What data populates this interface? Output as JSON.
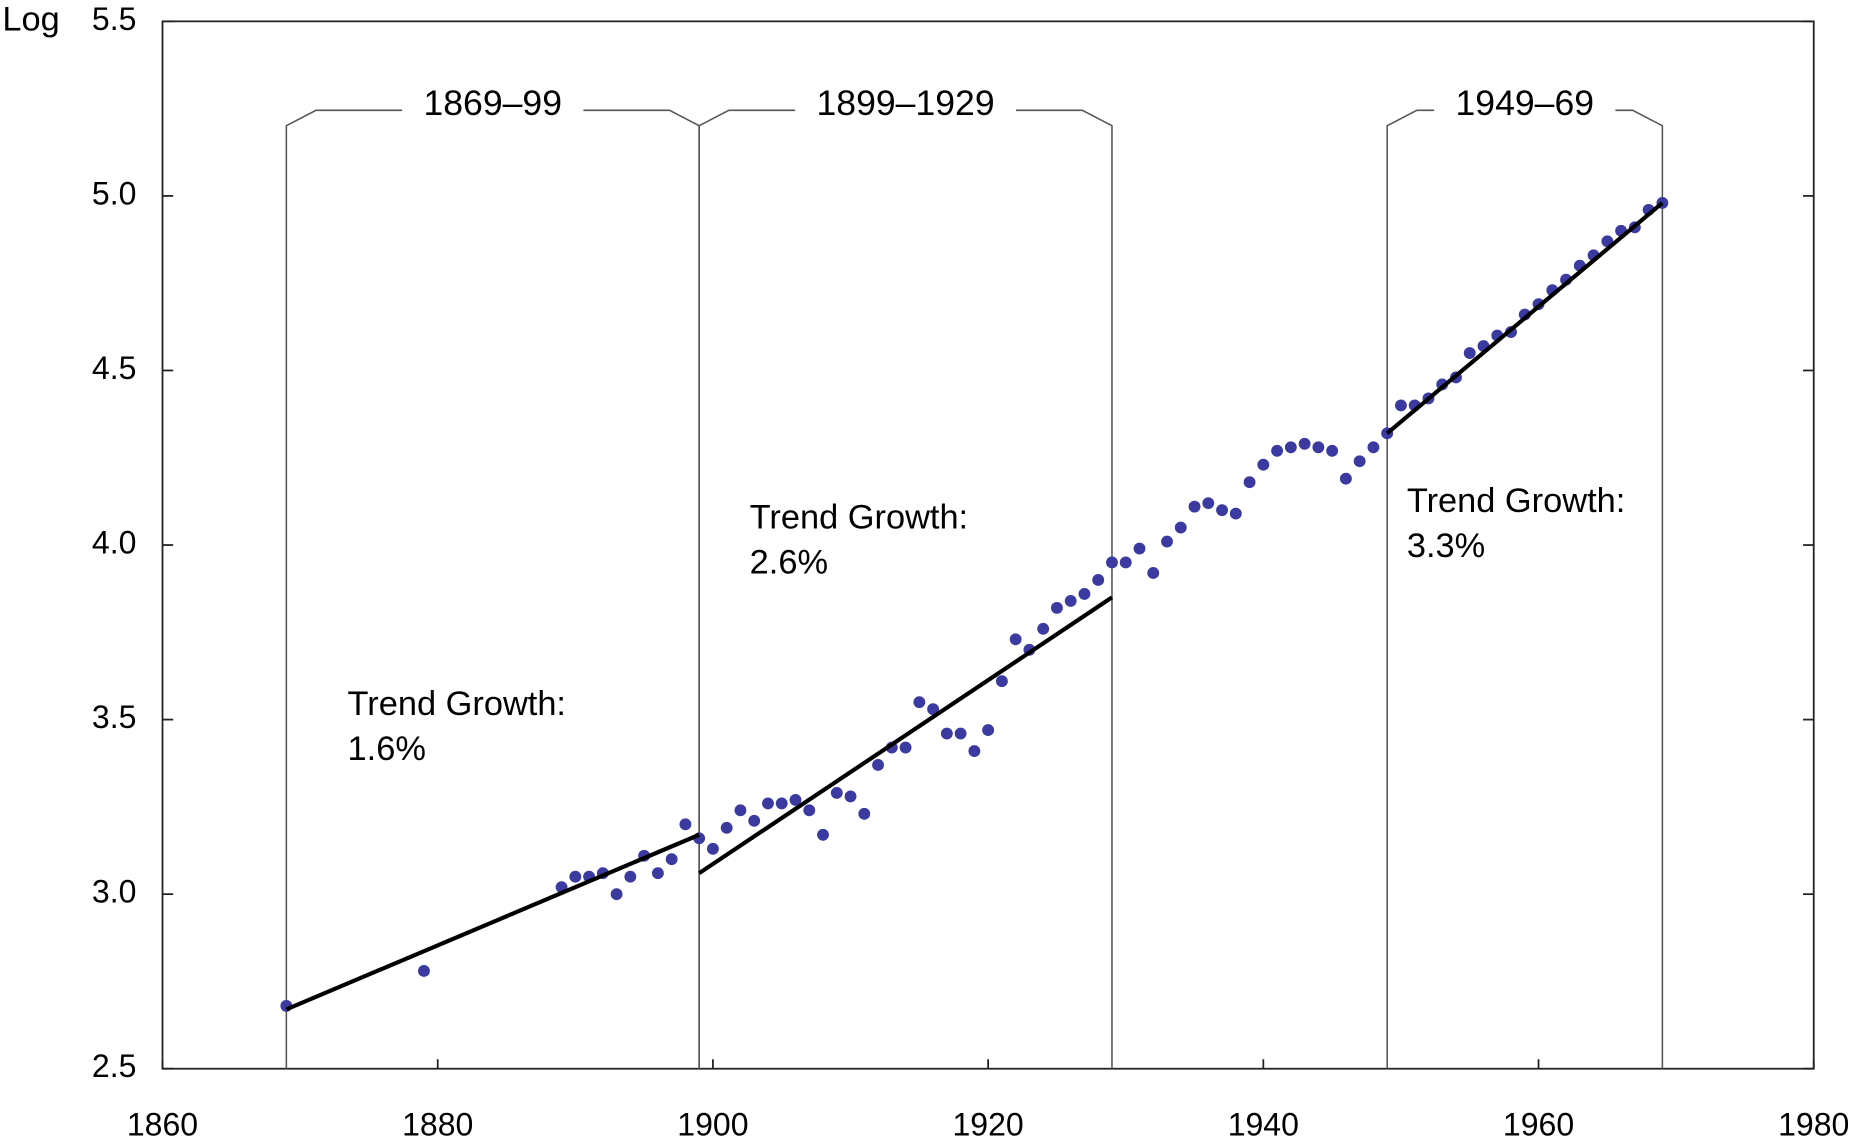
{
  "chart_data": {
    "type": "scatter",
    "ylabel": "Log",
    "xlim": [
      1860,
      1980
    ],
    "xticks": [
      1860,
      1880,
      1900,
      1920,
      1940,
      1960,
      1980
    ],
    "ylim": [
      2.5,
      5.5
    ],
    "yticks": [
      2.5,
      {
        "value": 3,
        "label": "3.0"
      },
      3.5,
      {
        "value": 4,
        "label": "4.0"
      },
      4.5,
      {
        "value": 5,
        "label": "5.0"
      },
      5.5
    ],
    "color": "#3a3aa0",
    "x": [
      1869,
      1879,
      1889,
      1890,
      1891,
      1892,
      1893,
      1894,
      1895,
      1896,
      1897,
      1898,
      1899,
      1900,
      1901,
      1902,
      1903,
      1904,
      1905,
      1906,
      1907,
      1908,
      1909,
      1910,
      1911,
      1912,
      1913,
      1914,
      1915,
      1916,
      1917,
      1918,
      1919,
      1920,
      1921,
      1922,
      1923,
      1924,
      1925,
      1926,
      1927,
      1928,
      1929,
      1930,
      1931,
      1932,
      1933,
      1934,
      1935,
      1936,
      1937,
      1938,
      1939,
      1940,
      1941,
      1942,
      1943,
      1944,
      1945,
      1946,
      1947,
      1948,
      1949,
      1950,
      1951,
      1952,
      1953,
      1954,
      1955,
      1956,
      1957,
      1958,
      1959,
      1960,
      1961,
      1962,
      1963,
      1964,
      1965,
      1966,
      1967,
      1968,
      1969
    ],
    "values": [
      2.68,
      2.78,
      3.02,
      3.05,
      3.05,
      3.06,
      3.0,
      3.05,
      3.11,
      3.06,
      3.1,
      3.2,
      3.16,
      3.13,
      3.19,
      3.24,
      3.21,
      3.26,
      3.26,
      3.27,
      3.24,
      3.17,
      3.29,
      3.28,
      3.23,
      3.37,
      3.42,
      3.42,
      3.55,
      3.53,
      3.46,
      3.46,
      3.41,
      3.47,
      3.61,
      3.73,
      3.7,
      3.76,
      3.82,
      3.84,
      3.86,
      3.9,
      3.95,
      3.95,
      3.99,
      3.92,
      4.01,
      4.05,
      4.11,
      4.12,
      4.1,
      4.09,
      4.18,
      4.23,
      4.27,
      4.28,
      4.29,
      4.28,
      4.27,
      4.19,
      4.24,
      4.28,
      4.32,
      4.4,
      4.4,
      4.42,
      4.46,
      4.48,
      4.55,
      4.57,
      4.6,
      4.61,
      4.66,
      4.69,
      4.73,
      4.76,
      4.8,
      4.83,
      4.87,
      4.9,
      4.91,
      4.96,
      4.98
    ],
    "trends": [
      {
        "x": [
          1869,
          1899
        ],
        "y": [
          2.67,
          3.17
        ],
        "label": [
          "Trend Growth:",
          "1.6%"
        ]
      },
      {
        "x": [
          1899,
          1929
        ],
        "y": [
          3.06,
          3.85
        ],
        "label": [
          "Trend Growth:",
          "2.6%"
        ]
      },
      {
        "x": [
          1949,
          1969
        ],
        "y": [
          4.32,
          4.98
        ],
        "label": [
          "Trend Growth:",
          "3.3%"
        ]
      }
    ],
    "periods": [
      {
        "label": "1869–99",
        "start": 1869,
        "end": 1899
      },
      {
        "label": "1899–1929",
        "start": 1899,
        "end": 1929
      },
      {
        "label": "1949–69",
        "start": 1949,
        "end": 1969
      }
    ]
  }
}
